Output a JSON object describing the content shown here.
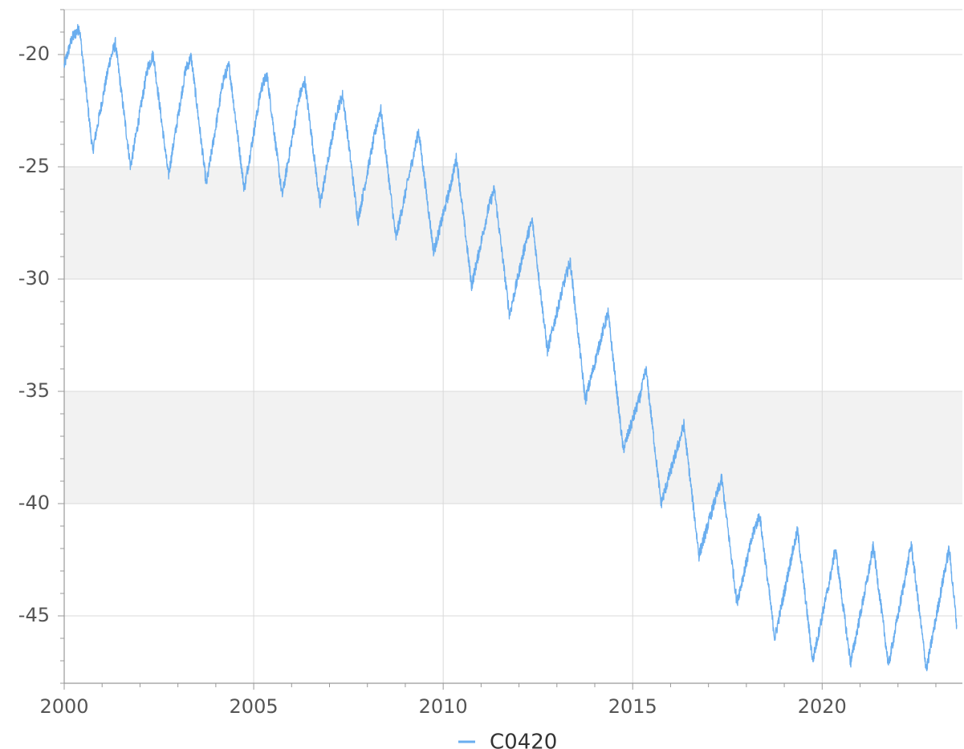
{
  "chart_data": {
    "type": "line",
    "title": "",
    "xlabel": "",
    "ylabel": "",
    "xlim": [
      2000,
      2023.7
    ],
    "ylim": [
      -48,
      -18
    ],
    "x_ticks": [
      2000,
      2005,
      2010,
      2015,
      2020
    ],
    "x_tick_labels": [
      "2000",
      "2005",
      "2010",
      "2015",
      "2020"
    ],
    "y_ticks": [
      -20,
      -25,
      -30,
      -35,
      -40,
      -45
    ],
    "y_tick_labels": [
      "-20",
      "-25",
      "-30",
      "-35",
      "-40",
      "-45"
    ],
    "grid": true,
    "alternating_bands": true,
    "legend": {
      "position": "bottom-center"
    },
    "series": [
      {
        "name": "C0420",
        "color": "#6aaeef",
        "x": [
          2000.0,
          2000.2,
          2000.4,
          2000.75,
          2001.2,
          2001.35,
          2001.75,
          2002.2,
          2002.35,
          2002.75,
          2003.2,
          2003.35,
          2003.75,
          2004.2,
          2004.35,
          2004.75,
          2005.2,
          2005.35,
          2005.75,
          2006.2,
          2006.35,
          2006.75,
          2007.2,
          2007.35,
          2007.75,
          2008.2,
          2008.35,
          2008.75,
          2009.2,
          2009.35,
          2009.75,
          2010.2,
          2010.35,
          2010.75,
          2011.2,
          2011.35,
          2011.75,
          2012.2,
          2012.35,
          2012.75,
          2013.2,
          2013.35,
          2013.75,
          2014.2,
          2014.35,
          2014.75,
          2015.2,
          2015.35,
          2015.75,
          2016.2,
          2016.35,
          2016.75,
          2017.2,
          2017.35,
          2017.75,
          2018.2,
          2018.35,
          2018.75,
          2019.2,
          2019.35,
          2019.75,
          2020.2,
          2020.35,
          2020.75,
          2021.2,
          2021.35,
          2021.75,
          2022.2,
          2022.35,
          2022.75,
          2023.2,
          2023.35,
          2023.55
        ],
        "values": [
          -20.5,
          -19.3,
          -18.8,
          -24.3,
          -20.3,
          -19.5,
          -25.0,
          -20.6,
          -20.0,
          -25.4,
          -20.7,
          -20.1,
          -25.8,
          -21.1,
          -20.5,
          -26.0,
          -21.5,
          -20.9,
          -26.3,
          -21.9,
          -21.2,
          -26.7,
          -22.5,
          -21.8,
          -27.4,
          -23.5,
          -22.4,
          -28.2,
          -24.6,
          -23.4,
          -28.8,
          -25.8,
          -24.6,
          -30.3,
          -26.8,
          -26.0,
          -31.6,
          -28.2,
          -27.4,
          -33.2,
          -30.1,
          -29.2,
          -35.4,
          -32.4,
          -31.5,
          -37.6,
          -35.2,
          -34.0,
          -40.0,
          -37.4,
          -36.5,
          -42.3,
          -39.7,
          -38.9,
          -44.4,
          -41.2,
          -40.5,
          -46.0,
          -42.3,
          -41.2,
          -47.0,
          -43.4,
          -42.0,
          -47.1,
          -43.3,
          -41.9,
          -47.2,
          -43.2,
          -41.8,
          -47.4,
          -43.3,
          -42.0,
          -45.4
        ]
      }
    ]
  }
}
